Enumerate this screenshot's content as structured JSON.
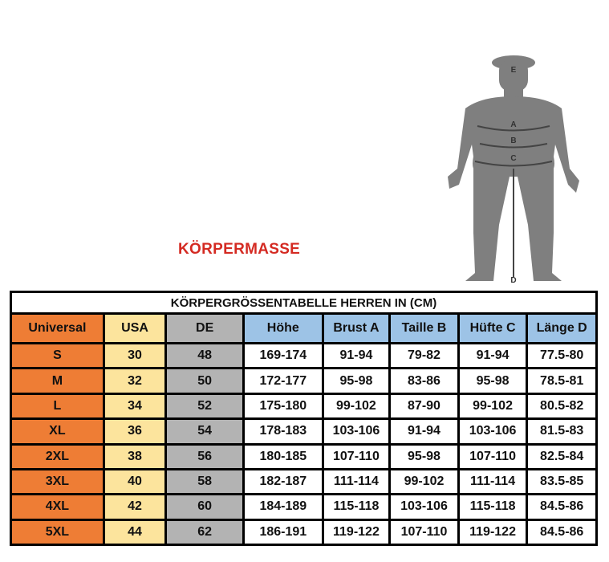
{
  "heading": "KÖRPERMASSE",
  "figure": {
    "labels": [
      "E",
      "A",
      "B",
      "C",
      "D"
    ]
  },
  "table": {
    "caption": "KÖRPERGRÖSSENTABELLE HERREN IN (CM)",
    "headers": [
      "Universal",
      "USA",
      "DE",
      "Höhe",
      "Brust A",
      "Taille B",
      "Hüfte C",
      "Länge D"
    ],
    "rows": [
      [
        "S",
        "30",
        "48",
        "169-174",
        "91-94",
        "79-82",
        "91-94",
        "77.5-80"
      ],
      [
        "M",
        "32",
        "50",
        "172-177",
        "95-98",
        "83-86",
        "95-98",
        "78.5-81"
      ],
      [
        "L",
        "34",
        "52",
        "175-180",
        "99-102",
        "87-90",
        "99-102",
        "80.5-82"
      ],
      [
        "XL",
        "36",
        "54",
        "178-183",
        "103-106",
        "91-94",
        "103-106",
        "81.5-83"
      ],
      [
        "2XL",
        "38",
        "56",
        "180-185",
        "107-110",
        "95-98",
        "107-110",
        "82.5-84"
      ],
      [
        "3XL",
        "40",
        "58",
        "182-187",
        "111-114",
        "99-102",
        "111-114",
        "83.5-85"
      ],
      [
        "4XL",
        "42",
        "60",
        "184-189",
        "115-118",
        "103-106",
        "115-118",
        "84.5-86"
      ],
      [
        "5XL",
        "44",
        "62",
        "186-191",
        "119-122",
        "107-110",
        "119-122",
        "84.5-86"
      ]
    ]
  },
  "colors": {
    "universal": "#ee7d35",
    "usa": "#fce49d",
    "de": "#b3b3b3",
    "header_blue": "#9dc3e6",
    "heading_red": "#d42a22"
  }
}
